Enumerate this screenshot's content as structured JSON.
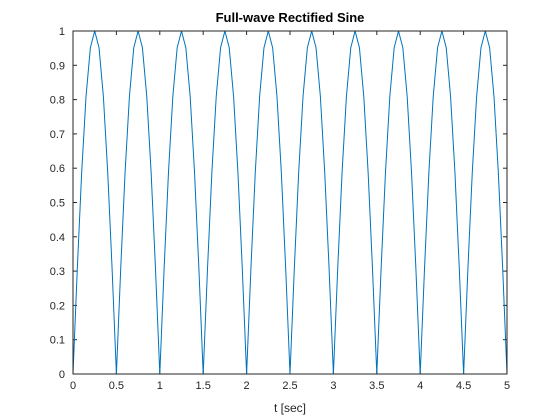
{
  "chart_data": {
    "type": "line",
    "title": "Full-wave Rectified Sine",
    "xlabel": "t [sec]",
    "ylabel": "",
    "xlim": [
      0,
      5
    ],
    "ylim": [
      0,
      1
    ],
    "xticks": [
      0,
      0.5,
      1,
      1.5,
      2,
      2.5,
      3,
      3.5,
      4,
      4.5,
      5
    ],
    "yticks": [
      0,
      0.1,
      0.2,
      0.3,
      0.4,
      0.5,
      0.6,
      0.7,
      0.8,
      0.9,
      1
    ],
    "xtick_labels": [
      "0",
      "0.5",
      "1",
      "1.5",
      "2",
      "2.5",
      "3",
      "3.5",
      "4",
      "4.5",
      "5"
    ],
    "ytick_labels": [
      "0",
      "0.1",
      "0.2",
      "0.3",
      "0.4",
      "0.5",
      "0.6",
      "0.7",
      "0.8",
      "0.9",
      "1"
    ],
    "grid": false,
    "line_color": "#0072BD",
    "series": [
      {
        "function": "|sin(2*pi*t)|",
        "x": [
          0,
          0.05,
          0.1,
          0.15,
          0.2,
          0.25,
          0.3,
          0.35,
          0.4,
          0.45,
          0.5,
          0.55,
          0.6,
          0.65,
          0.7,
          0.75,
          0.8,
          0.85,
          0.9,
          0.95,
          1,
          1.05,
          1.1,
          1.15,
          1.2,
          1.25,
          1.3,
          1.35,
          1.4,
          1.45,
          1.5,
          1.55,
          1.6,
          1.65,
          1.7,
          1.75,
          1.8,
          1.85,
          1.9,
          1.95,
          2,
          2.05,
          2.1,
          2.15,
          2.2,
          2.25,
          2.3,
          2.35,
          2.4,
          2.45,
          2.5,
          2.55,
          2.6,
          2.65,
          2.7,
          2.75,
          2.8,
          2.85,
          2.9,
          2.95,
          3,
          3.05,
          3.1,
          3.15,
          3.2,
          3.25,
          3.3,
          3.35,
          3.4,
          3.45,
          3.5,
          3.55,
          3.6,
          3.65,
          3.7,
          3.75,
          3.8,
          3.85,
          3.9,
          3.95,
          4,
          4.05,
          4.1,
          4.15,
          4.2,
          4.25,
          4.3,
          4.35,
          4.4,
          4.45,
          4.5,
          4.55,
          4.6,
          4.65,
          4.7,
          4.75,
          4.8,
          4.85,
          4.9,
          4.95,
          5
        ],
        "y": [
          0,
          0.309,
          0.588,
          0.809,
          0.951,
          1,
          0.951,
          0.809,
          0.588,
          0.309,
          0,
          0.309,
          0.588,
          0.809,
          0.951,
          1,
          0.951,
          0.809,
          0.588,
          0.309,
          0,
          0.309,
          0.588,
          0.809,
          0.951,
          1,
          0.951,
          0.809,
          0.588,
          0.309,
          0,
          0.309,
          0.588,
          0.809,
          0.951,
          1,
          0.951,
          0.809,
          0.588,
          0.309,
          0,
          0.309,
          0.588,
          0.809,
          0.951,
          1,
          0.951,
          0.809,
          0.588,
          0.309,
          0,
          0.309,
          0.588,
          0.809,
          0.951,
          1,
          0.951,
          0.809,
          0.588,
          0.309,
          0,
          0.309,
          0.588,
          0.809,
          0.951,
          1,
          0.951,
          0.809,
          0.588,
          0.309,
          0,
          0.309,
          0.588,
          0.809,
          0.951,
          1,
          0.951,
          0.809,
          0.588,
          0.309,
          0,
          0.309,
          0.588,
          0.809,
          0.951,
          1,
          0.951,
          0.809,
          0.588,
          0.309,
          0,
          0.309,
          0.588,
          0.809,
          0.951,
          1,
          0.951,
          0.809,
          0.588,
          0.309,
          0
        ]
      }
    ]
  }
}
